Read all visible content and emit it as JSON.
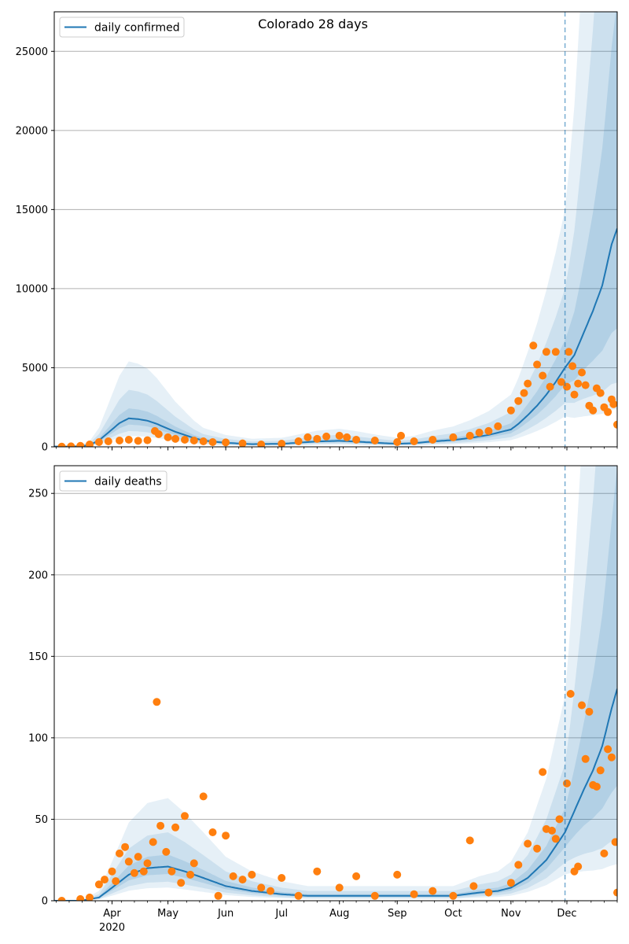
{
  "figure": {
    "title": "Colorado 28 days",
    "colors": {
      "model_line": "#1f77b4",
      "observed_points": "#ff7f0e",
      "band": "#1f77b4",
      "grid": "#b0b0b0",
      "forecast_marker": "#1f77b4"
    }
  },
  "chart_data": [
    {
      "type": "line",
      "title": "Colorado 28 days",
      "xlabel": "",
      "ylabel": "",
      "x_axis": {
        "type": "date",
        "range": [
          "2020-03-01",
          "2020-12-28"
        ],
        "tick_labels": [
          {
            "date": "2020-04-01",
            "label": "Apr",
            "sublabel": "2020"
          },
          {
            "date": "2020-05-01",
            "label": "May"
          },
          {
            "date": "2020-06-01",
            "label": "Jun"
          },
          {
            "date": "2020-07-01",
            "label": "Jul"
          },
          {
            "date": "2020-08-01",
            "label": "Aug"
          },
          {
            "date": "2020-09-01",
            "label": "Sep"
          },
          {
            "date": "2020-10-01",
            "label": "Oct"
          },
          {
            "date": "2020-11-01",
            "label": "Nov"
          },
          {
            "date": "2020-12-01",
            "label": "Dec"
          }
        ]
      },
      "ylim": [
        0,
        27500
      ],
      "yticks": [
        0,
        5000,
        10000,
        15000,
        20000,
        25000
      ],
      "grid": "y",
      "legend": {
        "placement": "top-left",
        "entries": [
          "daily confirmed"
        ]
      },
      "forecast_start": "2020-11-30",
      "series": [
        {
          "name": "daily confirmed",
          "kind": "line",
          "x": [
            "2020-03-01",
            "2020-03-10",
            "2020-03-15",
            "2020-03-20",
            "2020-03-25",
            "2020-03-30",
            "2020-04-05",
            "2020-04-10",
            "2020-04-15",
            "2020-04-20",
            "2020-04-25",
            "2020-05-01",
            "2020-05-05",
            "2020-05-10",
            "2020-05-15",
            "2020-05-20",
            "2020-06-01",
            "2020-06-15",
            "2020-07-01",
            "2020-07-10",
            "2020-07-20",
            "2020-08-01",
            "2020-08-10",
            "2020-08-20",
            "2020-09-01",
            "2020-09-10",
            "2020-09-20",
            "2020-10-01",
            "2020-10-10",
            "2020-10-20",
            "2020-11-01",
            "2020-11-05",
            "2020-11-10",
            "2020-11-15",
            "2020-11-20",
            "2020-11-25",
            "2020-11-30",
            "2020-12-05",
            "2020-12-10",
            "2020-12-15",
            "2020-12-20",
            "2020-12-25",
            "2020-12-28"
          ],
          "y": [
            20,
            20,
            40,
            120,
            400,
            900,
            1500,
            1800,
            1750,
            1650,
            1450,
            1150,
            950,
            750,
            550,
            400,
            250,
            170,
            190,
            260,
            340,
            380,
            330,
            260,
            190,
            230,
            340,
            430,
            560,
            750,
            1100,
            1450,
            2000,
            2600,
            3300,
            4100,
            5000,
            5800,
            7200,
            8600,
            10200,
            12800,
            13800
          ]
        },
        {
          "name": "",
          "kind": "scatter",
          "x": [
            "2020-03-05",
            "2020-03-10",
            "2020-03-15",
            "2020-03-20",
            "2020-03-25",
            "2020-03-30",
            "2020-04-05",
            "2020-04-10",
            "2020-04-15",
            "2020-04-20",
            "2020-04-24",
            "2020-04-26",
            "2020-05-01",
            "2020-05-05",
            "2020-05-10",
            "2020-05-15",
            "2020-05-20",
            "2020-05-25",
            "2020-06-01",
            "2020-06-10",
            "2020-06-20",
            "2020-07-01",
            "2020-07-10",
            "2020-07-15",
            "2020-07-20",
            "2020-07-25",
            "2020-08-01",
            "2020-08-05",
            "2020-08-10",
            "2020-08-20",
            "2020-09-01",
            "2020-09-03",
            "2020-09-10",
            "2020-09-20",
            "2020-10-01",
            "2020-10-10",
            "2020-10-15",
            "2020-10-20",
            "2020-10-25",
            "2020-11-01",
            "2020-11-05",
            "2020-11-08",
            "2020-11-10",
            "2020-11-13",
            "2020-11-15",
            "2020-11-18",
            "2020-11-20",
            "2020-11-22",
            "2020-11-25",
            "2020-11-28",
            "2020-12-01",
            "2020-12-02",
            "2020-12-04",
            "2020-12-05",
            "2020-12-07",
            "2020-12-09",
            "2020-12-11",
            "2020-12-13",
            "2020-12-15",
            "2020-12-17",
            "2020-12-19",
            "2020-12-21",
            "2020-12-23",
            "2020-12-25",
            "2020-12-26",
            "2020-12-28"
          ],
          "y": [
            10,
            30,
            60,
            150,
            300,
            350,
            400,
            450,
            380,
            420,
            1000,
            800,
            600,
            500,
            450,
            400,
            350,
            300,
            280,
            220,
            150,
            200,
            350,
            600,
            500,
            650,
            700,
            600,
            450,
            400,
            300,
            700,
            350,
            450,
            600,
            700,
            900,
            1000,
            1300,
            2300,
            2900,
            3400,
            4000,
            6400,
            5200,
            4500,
            6000,
            3800,
            6000,
            4100,
            3800,
            6000,
            5100,
            3300,
            4000,
            4700,
            3900,
            2600,
            2300,
            3700,
            3400,
            2500,
            2200,
            3000,
            2700,
            1400
          ]
        }
      ]
    },
    {
      "type": "line",
      "title": "",
      "xlabel": "",
      "ylabel": "",
      "x_axis": {
        "type": "date",
        "range": [
          "2020-03-01",
          "2020-12-28"
        ],
        "tick_labels": [
          {
            "date": "2020-04-01",
            "label": "Apr",
            "sublabel": "2020"
          },
          {
            "date": "2020-05-01",
            "label": "May"
          },
          {
            "date": "2020-06-01",
            "label": "Jun"
          },
          {
            "date": "2020-07-01",
            "label": "Jul"
          },
          {
            "date": "2020-08-01",
            "label": "Aug"
          },
          {
            "date": "2020-09-01",
            "label": "Sep"
          },
          {
            "date": "2020-10-01",
            "label": "Oct"
          },
          {
            "date": "2020-11-01",
            "label": "Nov"
          },
          {
            "date": "2020-12-01",
            "label": "Dec"
          }
        ]
      },
      "ylim": [
        0,
        267
      ],
      "yticks": [
        0,
        50,
        100,
        150,
        200,
        250
      ],
      "grid": "y",
      "legend": {
        "placement": "top-left",
        "entries": [
          "daily deaths"
        ]
      },
      "forecast_start": "2020-11-30",
      "series": [
        {
          "name": "daily deaths",
          "kind": "line",
          "x": [
            "2020-03-01",
            "2020-03-15",
            "2020-03-25",
            "2020-04-01",
            "2020-04-10",
            "2020-04-20",
            "2020-05-01",
            "2020-05-10",
            "2020-05-20",
            "2020-06-01",
            "2020-06-15",
            "2020-07-01",
            "2020-07-15",
            "2020-08-01",
            "2020-08-15",
            "2020-09-01",
            "2020-09-15",
            "2020-10-01",
            "2020-10-15",
            "2020-10-25",
            "2020-11-01",
            "2020-11-10",
            "2020-11-20",
            "2020-11-30",
            "2020-12-05",
            "2020-12-10",
            "2020-12-15",
            "2020-12-20",
            "2020-12-25",
            "2020-12-28"
          ],
          "y": [
            0,
            0,
            2,
            8,
            16,
            20,
            21,
            18,
            14,
            9,
            6,
            4,
            3,
            3,
            3,
            3,
            3,
            3,
            5,
            6,
            8,
            14,
            25,
            42,
            55,
            68,
            80,
            95,
            118,
            130
          ]
        },
        {
          "name": "",
          "kind": "scatter",
          "x": [
            "2020-03-05",
            "2020-03-15",
            "2020-03-20",
            "2020-03-25",
            "2020-03-28",
            "2020-04-01",
            "2020-04-03",
            "2020-04-05",
            "2020-04-08",
            "2020-04-10",
            "2020-04-13",
            "2020-04-15",
            "2020-04-18",
            "2020-04-20",
            "2020-04-23",
            "2020-04-25",
            "2020-04-27",
            "2020-04-30",
            "2020-05-03",
            "2020-05-05",
            "2020-05-08",
            "2020-05-10",
            "2020-05-13",
            "2020-05-15",
            "2020-05-20",
            "2020-05-25",
            "2020-05-28",
            "2020-06-01",
            "2020-06-05",
            "2020-06-10",
            "2020-06-15",
            "2020-06-20",
            "2020-06-25",
            "2020-07-01",
            "2020-07-10",
            "2020-07-20",
            "2020-08-01",
            "2020-08-10",
            "2020-08-20",
            "2020-09-01",
            "2020-09-10",
            "2020-09-20",
            "2020-10-01",
            "2020-10-10",
            "2020-10-12",
            "2020-10-20",
            "2020-11-01",
            "2020-11-05",
            "2020-11-10",
            "2020-11-15",
            "2020-11-18",
            "2020-11-20",
            "2020-11-23",
            "2020-11-25",
            "2020-11-27",
            "2020-12-01",
            "2020-12-03",
            "2020-12-05",
            "2020-12-07",
            "2020-12-09",
            "2020-12-11",
            "2020-12-13",
            "2020-12-15",
            "2020-12-17",
            "2020-12-19",
            "2020-12-21",
            "2020-12-23",
            "2020-12-25",
            "2020-12-27",
            "2020-12-28"
          ],
          "y": [
            0,
            1,
            2,
            10,
            13,
            18,
            12,
            29,
            33,
            24,
            17,
            27,
            18,
            23,
            36,
            122,
            46,
            30,
            18,
            45,
            11,
            52,
            16,
            23,
            64,
            42,
            3,
            40,
            15,
            13,
            16,
            8,
            6,
            14,
            3,
            18,
            8,
            15,
            3,
            16,
            4,
            6,
            3,
            37,
            9,
            5,
            11,
            22,
            35,
            32,
            79,
            44,
            43,
            38,
            50,
            72,
            127,
            18,
            21,
            120,
            87,
            116,
            71,
            70,
            80,
            29,
            93,
            88,
            36,
            5
          ]
        }
      ]
    }
  ]
}
